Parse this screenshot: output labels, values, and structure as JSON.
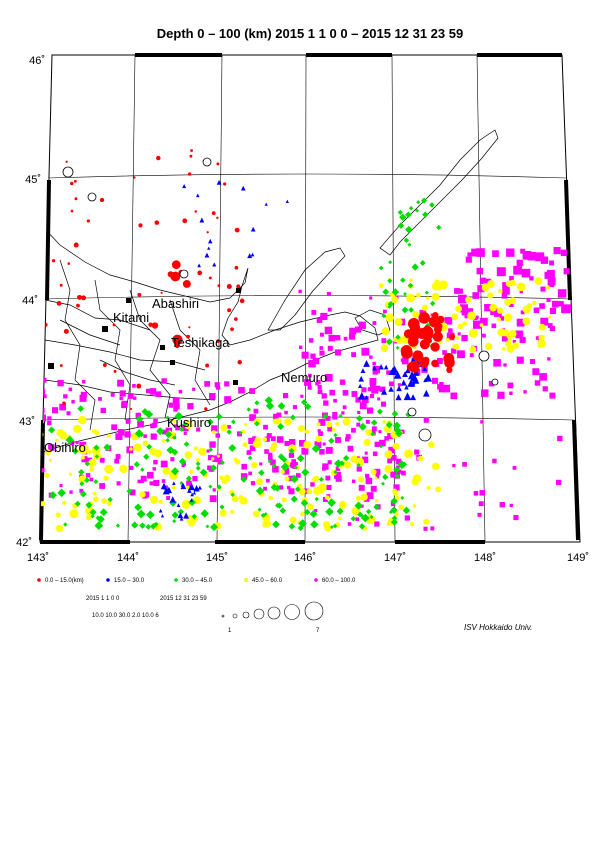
{
  "title": "Depth 0 – 100 (km)  2015 1 1 0 0 – 2015 12 31 23 59",
  "lon_labels": [
    "143˚",
    "144˚",
    "145˚",
    "146˚",
    "147˚",
    "148˚",
    "149˚"
  ],
  "lat_labels": [
    "46˚",
    "45˚",
    "44˚",
    "43˚",
    "42˚"
  ],
  "cities": [
    {
      "name": "Abashiri"
    },
    {
      "name": "Kitami"
    },
    {
      "name": "Teshikaga"
    },
    {
      "name": "Nemuro"
    },
    {
      "name": "Kushiro"
    },
    {
      "name": "Obihiro"
    }
  ],
  "legend": {
    "depth_classes": [
      {
        "label": "0.0  –  15.0(km)",
        "color": "#ff0000"
      },
      {
        "label": "15.0 – 30.0",
        "color": "#0000ff"
      },
      {
        "label": "30.0 – 45.0",
        "color": "#00e000"
      },
      {
        "label": "45.0 – 60.0",
        "color": "#ffff00"
      },
      {
        "label": "60.0 – 100.0",
        "color": "#ff00ff"
      }
    ],
    "period_start": "2015 1 1 0 0",
    "period_end": "2015 12 31 23 59",
    "scale_values": "10.0 10.0 30.0  2.0 10.0   6",
    "magnitude_min": "1",
    "magnitude_max": "7"
  },
  "credit": "ISV Hokkaido Univ."
}
